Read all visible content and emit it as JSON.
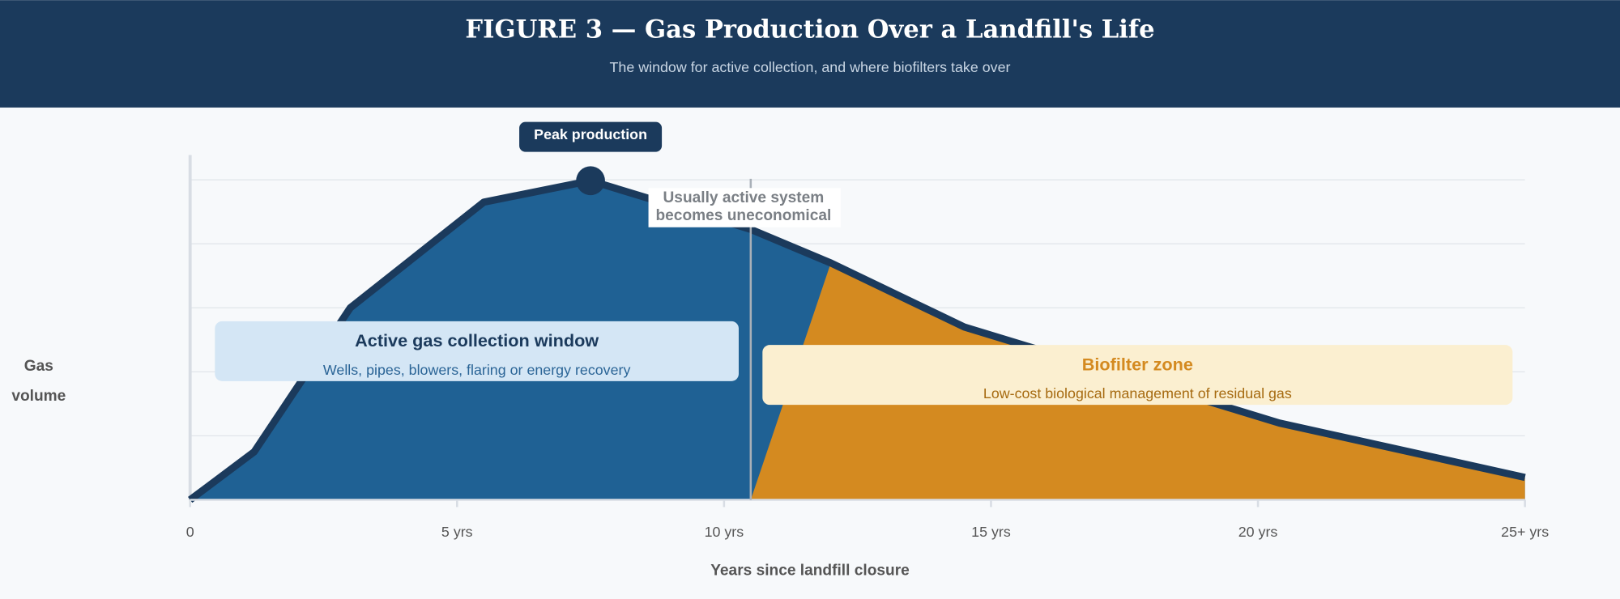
{
  "chart_data": {
    "type": "area",
    "title": "FIGURE 3 — Gas Production Over a Landfill's Life",
    "subtitle": "The window for active collection, and where biofilters take over",
    "x_label": "Years since landfill closure",
    "y_label": "Gas volume",
    "xlim": [
      0,
      25
    ],
    "ylim": [
      0,
      100
    ],
    "xticks": [
      0,
      {
        "value": 5,
        "label": "5 yrs"
      },
      {
        "value": 10,
        "label": "10 yrs"
      },
      {
        "value": 15,
        "label": "15 yrs"
      },
      {
        "value": 20,
        "label": "20 yrs"
      },
      {
        "value": 25,
        "label": "25+ yrs"
      }
    ],
    "ygrid": [
      20,
      40,
      60,
      80,
      100
    ],
    "grid": true,
    "series": [
      {
        "color": "#1f6194",
        "line_color": "#1b3a5c",
        "x": [
          0,
          1.2,
          3,
          5.5,
          7.5,
          10.5,
          12,
          14.5,
          20.4,
          25
        ],
        "values": [
          0,
          15,
          60,
          93,
          99.7,
          84.5,
          74,
          54,
          24,
          7
        ]
      },
      {
        "color": "#d48a20",
        "x": [
          10.5,
          12,
          14.5,
          20.4,
          25
        ],
        "values": [
          0,
          74,
          54,
          24,
          7
        ]
      }
    ],
    "peak": {
      "label": "Peak production",
      "x": 7.5,
      "y": 99.7
    },
    "threshold": {
      "x": 10.5,
      "label": [
        "Usually active system",
        "becomes uneconomical"
      ]
    },
    "zones": [
      {
        "title": "Active gas collection window",
        "subtitle": "Wells, pipes, blowers, flaring or energy recovery"
      },
      {
        "title": "Biofilter zone",
        "subtitle": "Low-cost biological management of residual gas"
      }
    ]
  }
}
